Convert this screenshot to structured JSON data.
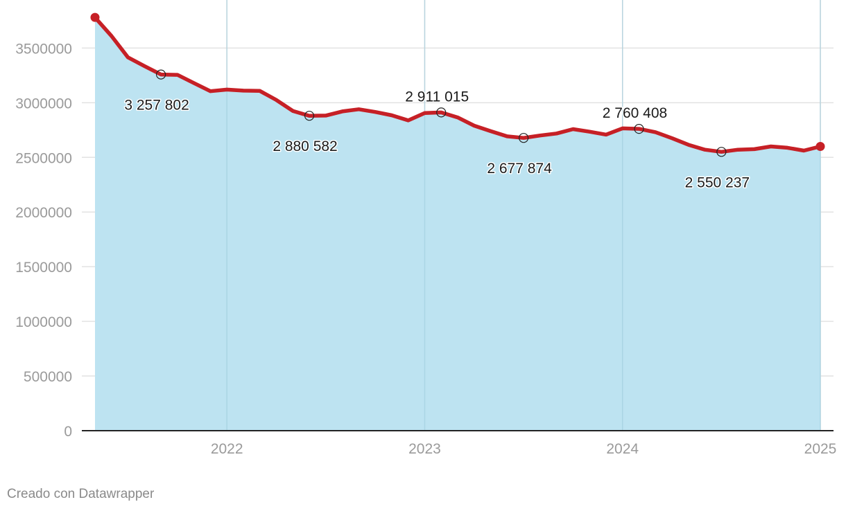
{
  "footer": {
    "credit": "Creado con Datawrapper"
  },
  "colors": {
    "area": "#bde3f1",
    "line": "#c62026",
    "grid": "#e2e2e2",
    "baseline": "#222222"
  },
  "chart_data": {
    "type": "area",
    "title": "",
    "xlabel": "",
    "ylabel": "",
    "grid": true,
    "ylim": [
      0,
      3800000
    ],
    "xlim": [
      "2021-05",
      "2025-01"
    ],
    "y_ticks": [
      {
        "value": 0,
        "label": "0"
      },
      {
        "value": 500000,
        "label": "500000"
      },
      {
        "value": 1000000,
        "label": "1000000"
      },
      {
        "value": 1500000,
        "label": "1500000"
      },
      {
        "value": 2000000,
        "label": "2000000"
      },
      {
        "value": 2500000,
        "label": "2500000"
      },
      {
        "value": 3000000,
        "label": "3000000"
      },
      {
        "value": 3500000,
        "label": "3500000"
      }
    ],
    "x_ticks": [
      {
        "value": "2022-01",
        "label": "2022"
      },
      {
        "value": "2023-01",
        "label": "2023"
      },
      {
        "value": "2024-01",
        "label": "2024"
      },
      {
        "value": "2025-01",
        "label": "2025"
      }
    ],
    "x": [
      "2021-05",
      "2021-06",
      "2021-07",
      "2021-08",
      "2021-09",
      "2021-10",
      "2021-11",
      "2021-12",
      "2022-01",
      "2022-02",
      "2022-03",
      "2022-04",
      "2022-05",
      "2022-06",
      "2022-07",
      "2022-08",
      "2022-09",
      "2022-10",
      "2022-11",
      "2022-12",
      "2023-01",
      "2023-02",
      "2023-03",
      "2023-04",
      "2023-05",
      "2023-06",
      "2023-07",
      "2023-08",
      "2023-09",
      "2023-10",
      "2023-11",
      "2023-12",
      "2024-01",
      "2024-02",
      "2024-03",
      "2024-04",
      "2024-05",
      "2024-06",
      "2024-07",
      "2024-08",
      "2024-09",
      "2024-10",
      "2024-11",
      "2024-12",
      "2025-01"
    ],
    "values": [
      3780000,
      3610000,
      3415000,
      3335000,
      3257802,
      3255000,
      3180000,
      3105000,
      3120000,
      3110000,
      3108000,
      3025000,
      2925000,
      2880582,
      2882000,
      2920000,
      2940000,
      2915000,
      2885000,
      2838000,
      2905000,
      2911015,
      2865000,
      2790000,
      2740000,
      2692000,
      2677874,
      2700000,
      2718000,
      2758000,
      2735000,
      2708000,
      2765000,
      2760408,
      2730000,
      2675000,
      2615000,
      2570000,
      2550237,
      2570000,
      2575000,
      2600000,
      2588000,
      2562000,
      2600000
    ],
    "annotations": [
      {
        "x": "2021-09",
        "value": 3257802,
        "label": "3 257 802",
        "position": "below"
      },
      {
        "x": "2022-06",
        "value": 2880582,
        "label": "2 880 582",
        "position": "below"
      },
      {
        "x": "2023-02",
        "value": 2911015,
        "label": "2 911 015",
        "position": "above"
      },
      {
        "x": "2023-07",
        "value": 2677874,
        "label": "2 677 874",
        "position": "below"
      },
      {
        "x": "2024-02",
        "value": 2760408,
        "label": "2 760 408",
        "position": "above"
      },
      {
        "x": "2024-07",
        "value": 2550237,
        "label": "2 550 237",
        "position": "below"
      }
    ]
  }
}
